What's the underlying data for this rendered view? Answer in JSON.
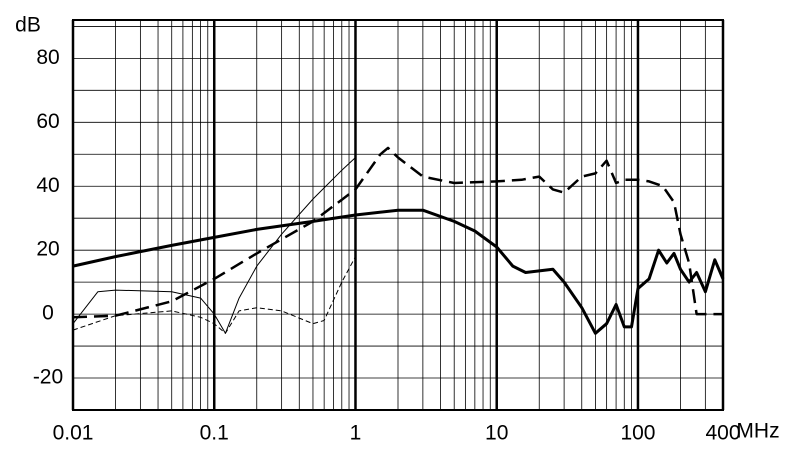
{
  "chart_data": {
    "type": "line",
    "y_label": "dB",
    "x_label": "MHz",
    "xscale": "log",
    "grid": true,
    "minor_grid": true,
    "xlim": [
      0.01,
      400
    ],
    "ylim": [
      -30,
      92
    ],
    "xticks": [
      0.01,
      0.1,
      1,
      10,
      100,
      400
    ],
    "yticks": [
      -20,
      0,
      20,
      40,
      60,
      80
    ],
    "series": [
      {
        "color": "#000000",
        "width": 3,
        "dash": "solid",
        "x": [
          0.01,
          0.02,
          0.05,
          0.1,
          0.2,
          0.5,
          1,
          2,
          3,
          5,
          7,
          10,
          13,
          16,
          20,
          25,
          30,
          40,
          50,
          60,
          70,
          80,
          90,
          100,
          120,
          140,
          160,
          180,
          200,
          230,
          260,
          300,
          350,
          400
        ],
        "values": [
          15,
          18,
          21.5,
          24,
          26.5,
          29,
          31,
          32.5,
          32.5,
          29,
          26,
          21,
          15,
          13,
          13.5,
          14,
          10,
          2,
          -6,
          -3,
          3,
          -4,
          -4,
          8,
          11,
          20,
          16,
          19,
          14,
          10,
          13,
          7,
          17,
          11
        ]
      },
      {
        "color": "#000000",
        "width": 2.5,
        "dash": "dashed",
        "x": [
          0.01,
          0.02,
          0.05,
          0.1,
          0.2,
          0.5,
          1,
          1.5,
          1.7,
          2,
          3,
          5,
          10,
          15,
          20,
          25,
          30,
          40,
          50,
          60,
          70,
          80,
          100,
          120,
          150,
          180,
          200,
          230,
          260,
          300,
          400
        ],
        "values": [
          -1,
          -0.5,
          4,
          11,
          19,
          29,
          39,
          50,
          52,
          49,
          43,
          41,
          41.5,
          42,
          43,
          39,
          38,
          43,
          44,
          48,
          41,
          42,
          42,
          41.5,
          40,
          35,
          25,
          16,
          0,
          0,
          0
        ]
      },
      {
        "color": "#000000",
        "width": 1,
        "dash": "solid",
        "x": [
          0.01,
          0.015,
          0.02,
          0.05,
          0.08,
          0.1,
          0.12,
          0.15,
          0.2,
          0.3,
          0.5,
          0.8,
          1
        ],
        "values": [
          -3,
          7,
          7.5,
          7,
          5,
          0,
          -6,
          5,
          15,
          25,
          36,
          45,
          49
        ]
      },
      {
        "color": "#000000",
        "width": 1,
        "dash": "thin-dashed",
        "x": [
          0.01,
          0.02,
          0.05,
          0.08,
          0.1,
          0.12,
          0.15,
          0.2,
          0.3,
          0.5,
          0.6,
          0.8,
          1
        ],
        "values": [
          -5,
          -0.5,
          1,
          -1,
          -3,
          -6,
          1,
          2,
          1,
          -3,
          -2,
          10,
          18
        ]
      }
    ]
  }
}
